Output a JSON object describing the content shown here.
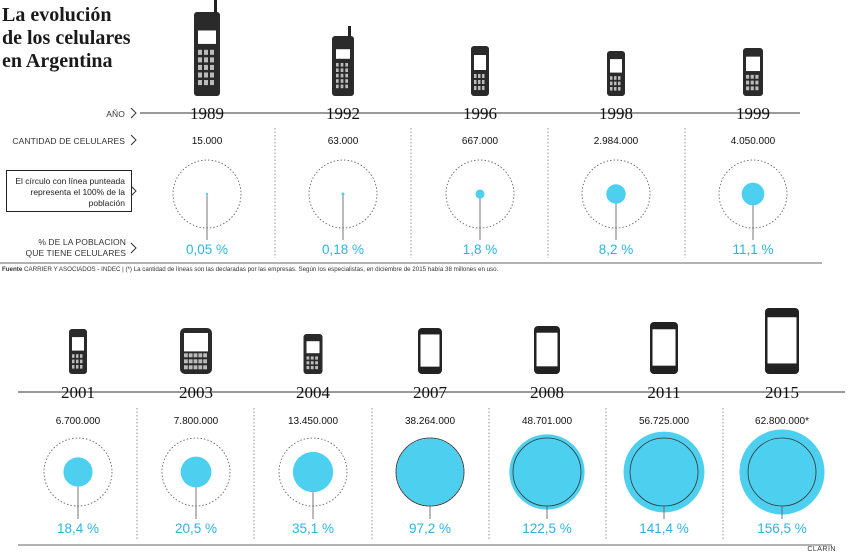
{
  "title_lines": [
    "La evolución",
    "de los celulares",
    "en Argentina"
  ],
  "labels": {
    "year": "AÑO",
    "count": "CANTIDAD DE CELULARES",
    "note": "El círculo con línea punteada representa el 100% de la población",
    "percent_line1": "% DE LA POBLACION",
    "percent_line2": "QUE TIENE CELULARES"
  },
  "source_label": "Fuente",
  "source_text": "CARRIER Y ASOCIADOS - INDEC | (*) La cantidad de líneas son las declaradas por las empresas. Según los especialistas, en diciembre de 2015 había 38 millones en uso.",
  "credit": "CLARIN",
  "colors": {
    "accent": "#4dd0f0",
    "text_accent": "#2bb5e0",
    "ink": "#222222"
  },
  "chart_data": {
    "type": "bubble",
    "x": [
      "1989",
      "1992",
      "1996",
      "1998",
      "1999",
      "2001",
      "2003",
      "2004",
      "2007",
      "2008",
      "2011",
      "2015"
    ],
    "counts": [
      "15.000",
      "63.000",
      "667.000",
      "2.984.000",
      "4.050.000",
      "6.700.000",
      "7.800.000",
      "13.450.000",
      "38.264.000",
      "48.701.000",
      "56.725.000",
      "62.800.000*"
    ],
    "count_values": [
      15000,
      63000,
      667000,
      2984000,
      4050000,
      6700000,
      7800000,
      13450000,
      38264000,
      48701000,
      56725000,
      62800000
    ],
    "percent_labels": [
      "0,05 %",
      "0,18 %",
      "1,8 %",
      "8,2 %",
      "11,1 %",
      "18,4 %",
      "20,5 %",
      "35,1 %",
      "97,2 %",
      "122,5 %",
      "141,4 %",
      "156,5 %"
    ],
    "percent_values": [
      0.05,
      0.18,
      1.8,
      8.2,
      11.1,
      18.4,
      20.5,
      35.1,
      97.2,
      122.5,
      141.4,
      156.5
    ],
    "reference": "100% de la población (círculo punteado)",
    "phone_icons": [
      "brick-phone-icon",
      "brick-phone-icon",
      "candybar-phone-icon",
      "keypad-phone-icon",
      "flip-phone-icon",
      "keypad-phone-icon",
      "qwerty-phone-icon",
      "slider-phone-icon",
      "smartphone-icon",
      "smartphone-icon",
      "smartphone-icon",
      "smartphone-icon"
    ]
  }
}
